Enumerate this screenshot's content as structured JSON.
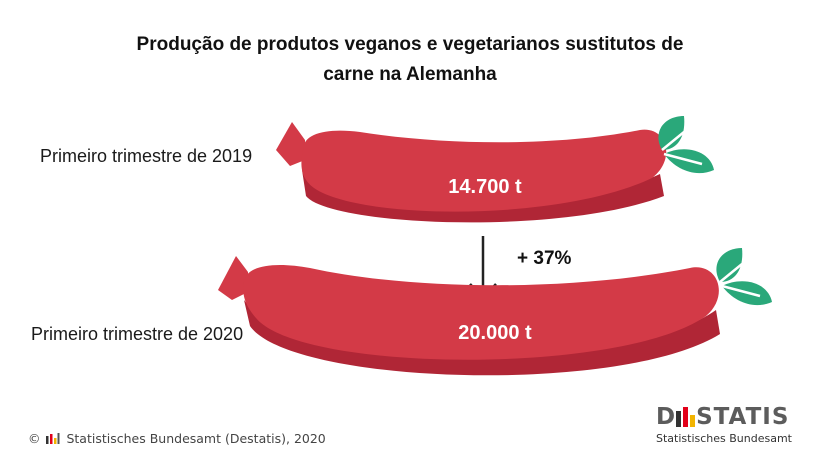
{
  "chart_data": {
    "type": "bar",
    "title": "Produção de produtos veganos e vegetarianos sustitutos de carne na Alemanha",
    "title_lines": [
      "Produção de produtos veganos e vegetarianos sustitutos de",
      "carne na Alemanha"
    ],
    "categories": [
      "Primeiro trimestre de 2019",
      "Primeiro trimestre de 2020"
    ],
    "values": [
      14700,
      20000
    ],
    "value_labels": [
      "14.700 t",
      "20.000 t"
    ],
    "unit": "t",
    "change_label": "+ 37%",
    "colors": {
      "sausage": "#d33a47",
      "sausage_shadow": "#b02636",
      "leaf": "#2aa87a",
      "arrow": "#222222"
    }
  },
  "footer": {
    "copyright": "© Statistisches Bundesamt (Destatis), 2020",
    "copyright_prefix": "©",
    "copyright_text": "Statistisches Bundesamt (Destatis), 2020",
    "logo_word_left": "D",
    "logo_word_right": "STATIS",
    "logo_subtitle": "Statistisches Bundesamt"
  }
}
